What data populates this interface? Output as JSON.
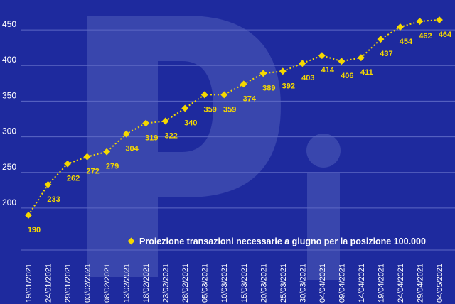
{
  "chart_data": {
    "type": "line",
    "categories": [
      "19/01/2021",
      "24/01/2021",
      "29/01/2021",
      "03/02/2021",
      "08/02/2021",
      "13/02/2021",
      "18/02/2021",
      "23/02/2021",
      "28/02/2021",
      "05/03/2021",
      "10/03/2021",
      "15/03/2021",
      "20/03/2021",
      "25/03/2021",
      "30/03/2021",
      "04/04/2021",
      "09/04/2021",
      "14/04/2021",
      "19/04/2021",
      "24/04/2021",
      "29/04/2021",
      "04/05/2021"
    ],
    "series": [
      {
        "name": "Proiezione transazioni necessarie a giugno per la posizione 100.000",
        "values": [
          190,
          233,
          262,
          272,
          279,
          304,
          319,
          322,
          340,
          359,
          359,
          374,
          389,
          392,
          403,
          414,
          406,
          411,
          437,
          454,
          462,
          464
        ]
      }
    ],
    "data_labels": [
      "190",
      "233",
      "262",
      "272",
      "279",
      "304",
      "319",
      "322",
      "340",
      "359",
      "359",
      "374",
      "389",
      "392",
      "403",
      "414",
      "406",
      "411",
      "437",
      "454",
      "462",
      "464"
    ],
    "y_ticks": [
      200,
      250,
      300,
      350,
      400,
      450
    ],
    "y_tick_labels": [
      "200",
      "250",
      "300",
      "350",
      "400",
      "450"
    ],
    "ylim": [
      180,
      470
    ],
    "grid": true,
    "legend_position": "bottom-right",
    "colors": {
      "background": "#1e2a9e",
      "series": "#f5d800",
      "grid": "#5d68c4",
      "text": "#ffffff",
      "watermark": "#3946ad"
    }
  }
}
